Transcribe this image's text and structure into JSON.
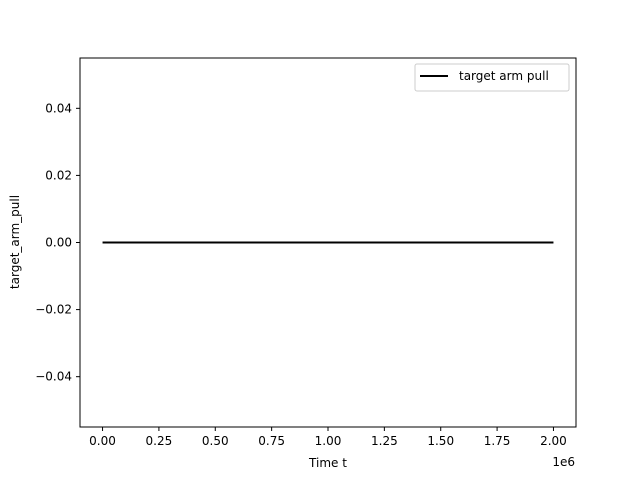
{
  "chart_data": {
    "type": "line",
    "title": "",
    "xlabel": "Time t",
    "ylabel": "target_arm_pull",
    "x_offset_label": "1e6",
    "xlim": [
      -100000,
      2100000
    ],
    "ylim": [
      -0.055,
      0.055
    ],
    "x_ticks": [
      0,
      250000,
      500000,
      750000,
      1000000,
      1250000,
      1500000,
      1750000,
      2000000
    ],
    "x_tick_labels": [
      "0.00",
      "0.25",
      "0.50",
      "0.75",
      "1.00",
      "1.25",
      "1.50",
      "1.75",
      "2.00"
    ],
    "y_ticks": [
      0.04,
      0.02,
      0.0,
      -0.02,
      -0.04
    ],
    "y_tick_labels": [
      "0.04",
      "0.02",
      "0.00",
      "−0.02",
      "−0.04"
    ],
    "grid": false,
    "legend_position": "top-right",
    "series": [
      {
        "name": "target arm pull",
        "color": "#000000",
        "x": [
          0,
          2000000
        ],
        "y": [
          0,
          0
        ]
      }
    ]
  }
}
